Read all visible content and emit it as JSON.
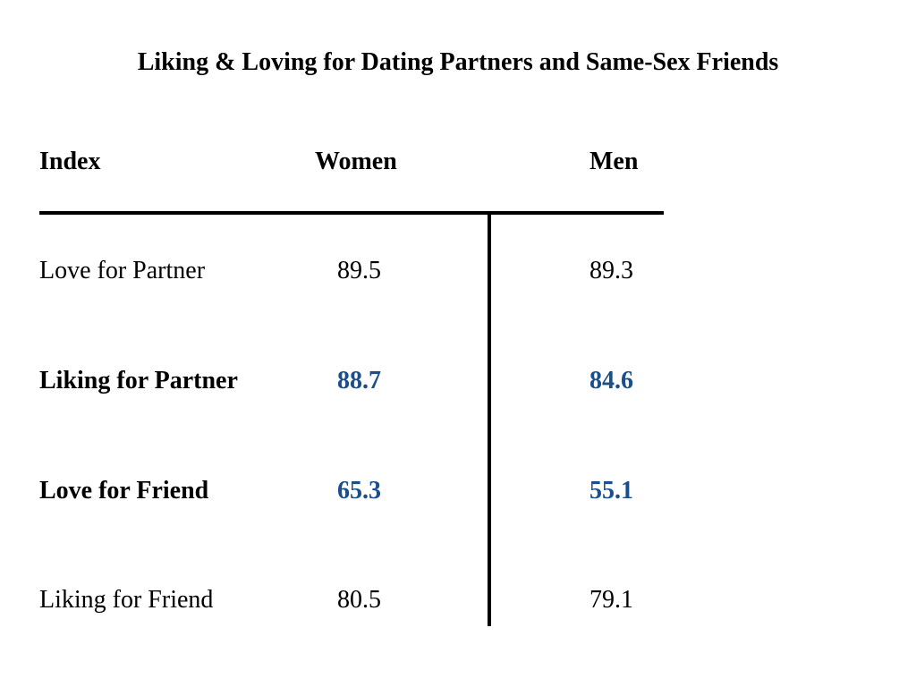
{
  "title": "Liking & Loving for Dating Partners and Same-Sex Friends",
  "table": {
    "headers": [
      "Index",
      "Women",
      "Men"
    ],
    "rows": [
      [
        "Love for Partner",
        89.5,
        89.3
      ],
      [
        "Liking for Partner",
        88.7,
        84.6
      ],
      [
        "Love for Friend",
        65.3,
        55.1
      ],
      [
        "Liking for Friend",
        80.5,
        79.1
      ]
    ]
  }
}
